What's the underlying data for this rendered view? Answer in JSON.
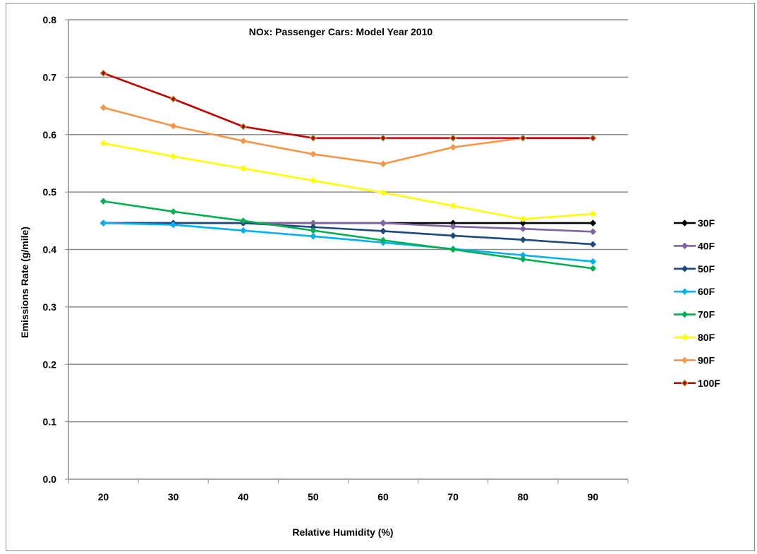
{
  "chart_data": {
    "type": "line",
    "title": "NOx: Passenger Cars: Model Year 2010",
    "xlabel": "Relative Humidity (%)",
    "ylabel": "Emissions Rate (g/mile)",
    "x": [
      20,
      30,
      40,
      50,
      60,
      70,
      80,
      90
    ],
    "ylim": [
      0,
      0.8
    ],
    "y_ticks": [
      "0.0",
      "0.1",
      "0.2",
      "0.3",
      "0.4",
      "0.5",
      "0.6",
      "0.7",
      "0.8"
    ],
    "grid": "horizontal",
    "legend_position": "right",
    "series": [
      {
        "name": "30F",
        "color": "#000000",
        "marker": "diamond",
        "values": [
          0.446,
          0.446,
          0.446,
          0.446,
          0.446,
          0.446,
          0.446,
          0.446
        ]
      },
      {
        "name": "40F",
        "color": "#8064a2",
        "marker": "diamond",
        "values": [
          0.446,
          0.446,
          0.446,
          0.446,
          0.446,
          0.44,
          0.436,
          0.431
        ]
      },
      {
        "name": "50F",
        "color": "#1f497d",
        "marker": "diamond",
        "values": [
          0.446,
          0.446,
          0.446,
          0.439,
          0.432,
          0.424,
          0.417,
          0.409
        ]
      },
      {
        "name": "60F",
        "color": "#00b0f0",
        "marker": "diamond",
        "values": [
          0.446,
          0.443,
          0.433,
          0.423,
          0.412,
          0.401,
          0.39,
          0.379
        ]
      },
      {
        "name": "70F",
        "color": "#00b050",
        "marker": "diamond",
        "values": [
          0.484,
          0.466,
          0.45,
          0.433,
          0.416,
          0.4,
          0.383,
          0.367
        ]
      },
      {
        "name": "80F",
        "color": "#ffff00",
        "marker": "diamond",
        "values": [
          0.585,
          0.562,
          0.541,
          0.52,
          0.499,
          0.476,
          0.453,
          0.462
        ]
      },
      {
        "name": "90F",
        "color": "#f79646",
        "marker": "diamond",
        "values": [
          0.647,
          0.615,
          0.589,
          0.566,
          0.549,
          0.578,
          0.594,
          0.594
        ]
      },
      {
        "name": "100F",
        "color": "#c00000",
        "marker": "diamond",
        "marker_color": "#9bbb59",
        "values": [
          0.707,
          0.662,
          0.614,
          0.594,
          0.594,
          0.594,
          0.594,
          0.594
        ]
      }
    ]
  }
}
